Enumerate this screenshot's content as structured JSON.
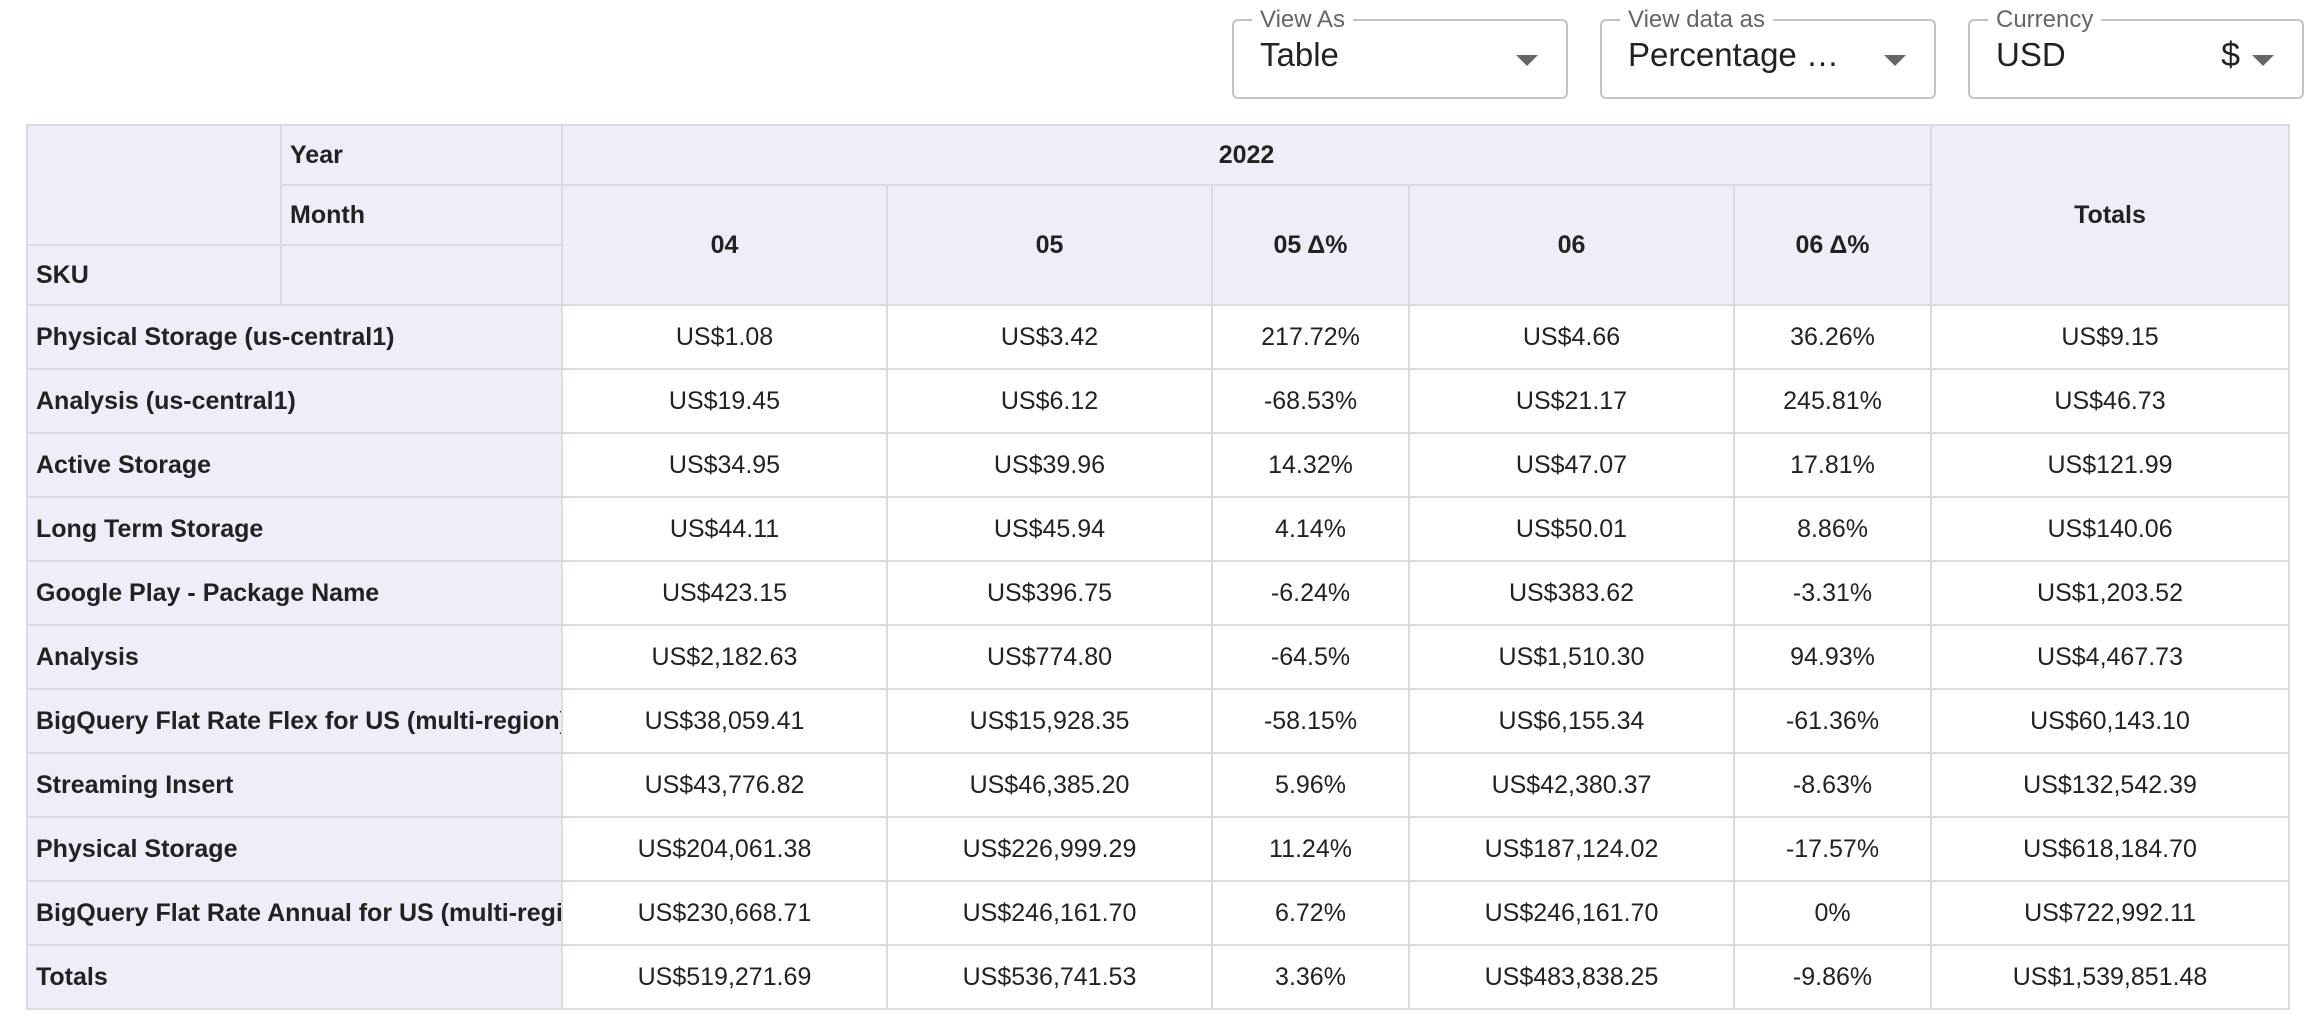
{
  "controls": {
    "view_as": {
      "label": "View As",
      "value": "Table"
    },
    "view_data_as": {
      "label": "View data as",
      "value": "Percentage Ch..."
    },
    "currency": {
      "label": "Currency",
      "value": "USD",
      "symbol": "$"
    }
  },
  "table": {
    "header": {
      "year_label": "Year",
      "month_label": "Month",
      "sku_label": "SKU",
      "year_value": "2022",
      "totals_label": "Totals",
      "columns": [
        "04",
        "05",
        "05 Δ%",
        "06",
        "06 Δ%"
      ]
    },
    "rows": [
      {
        "sku": "Physical Storage (us-central1)",
        "cells": [
          "US$1.08",
          "US$3.42",
          "217.72%",
          "US$4.66",
          "36.26%",
          "US$9.15"
        ]
      },
      {
        "sku": "Analysis (us-central1)",
        "cells": [
          "US$19.45",
          "US$6.12",
          "-68.53%",
          "US$21.17",
          "245.81%",
          "US$46.73"
        ]
      },
      {
        "sku": "Active Storage",
        "cells": [
          "US$34.95",
          "US$39.96",
          "14.32%",
          "US$47.07",
          "17.81%",
          "US$121.99"
        ]
      },
      {
        "sku": "Long Term Storage",
        "cells": [
          "US$44.11",
          "US$45.94",
          "4.14%",
          "US$50.01",
          "8.86%",
          "US$140.06"
        ]
      },
      {
        "sku": "Google Play - Package Name",
        "cells": [
          "US$423.15",
          "US$396.75",
          "-6.24%",
          "US$383.62",
          "-3.31%",
          "US$1,203.52"
        ]
      },
      {
        "sku": "Analysis",
        "cells": [
          "US$2,182.63",
          "US$774.80",
          "-64.5%",
          "US$1,510.30",
          "94.93%",
          "US$4,467.73"
        ]
      },
      {
        "sku": "BigQuery Flat Rate Flex for US (multi-region)",
        "cells": [
          "US$38,059.41",
          "US$15,928.35",
          "-58.15%",
          "US$6,155.34",
          "-61.36%",
          "US$60,143.10"
        ]
      },
      {
        "sku": "Streaming Insert",
        "cells": [
          "US$43,776.82",
          "US$46,385.20",
          "5.96%",
          "US$42,380.37",
          "-8.63%",
          "US$132,542.39"
        ]
      },
      {
        "sku": "Physical Storage",
        "cells": [
          "US$204,061.38",
          "US$226,999.29",
          "11.24%",
          "US$187,124.02",
          "-17.57%",
          "US$618,184.70"
        ]
      },
      {
        "sku": "BigQuery Flat Rate Annual for US (multi-region)",
        "cells": [
          "US$230,668.71",
          "US$246,161.70",
          "6.72%",
          "US$246,161.70",
          "0%",
          "US$722,992.11"
        ]
      }
    ],
    "totals_row": {
      "sku": "Totals",
      "cells": [
        "US$519,271.69",
        "US$536,741.53",
        "3.36%",
        "US$483,838.25",
        "-9.86%",
        "US$1,539,851.48"
      ]
    }
  }
}
